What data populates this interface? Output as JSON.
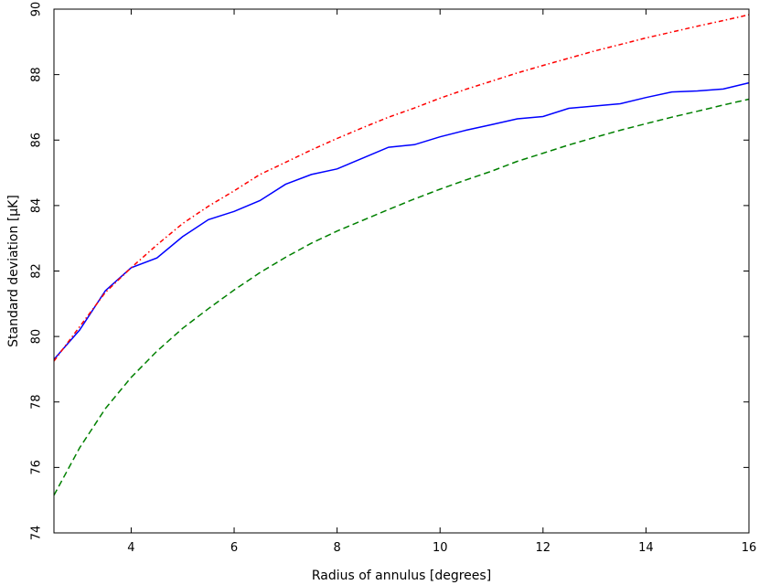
{
  "chart_data": {
    "type": "line",
    "xlabel": "Radius of annulus [degrees]",
    "ylabel": "Standard deviation [μK]",
    "xlim": [
      2.5,
      16
    ],
    "ylim": [
      74,
      90
    ],
    "xticks": [
      4,
      6,
      8,
      10,
      12,
      14,
      16
    ],
    "yticks": [
      74,
      76,
      78,
      80,
      82,
      84,
      86,
      88,
      90
    ],
    "grid": false,
    "legend": "none",
    "series": [
      {
        "color": "#0000ff",
        "style": "solid",
        "x": [
          2.5,
          3.0,
          3.5,
          4.0,
          4.5,
          5.0,
          5.5,
          6.0,
          6.5,
          7.0,
          7.5,
          8.0,
          8.5,
          9.0,
          9.5,
          10.0,
          10.5,
          11.0,
          11.5,
          12.0,
          12.5,
          13.0,
          13.5,
          14.0,
          14.5,
          15.0,
          15.5,
          16.0
        ],
        "y": [
          79.3,
          80.2,
          81.4,
          82.1,
          82.4,
          83.05,
          83.57,
          83.82,
          84.15,
          84.65,
          84.95,
          85.12,
          85.45,
          85.78,
          85.86,
          86.1,
          86.3,
          86.47,
          86.65,
          86.72,
          86.97,
          87.04,
          87.11,
          87.3,
          87.47,
          87.5,
          87.56,
          87.75
        ]
      },
      {
        "color": "#ff0000",
        "style": "dashdot",
        "x": [
          2.5,
          3.0,
          3.5,
          4.0,
          4.5,
          5.0,
          5.5,
          6.0,
          6.5,
          7.0,
          7.5,
          8.0,
          8.5,
          9.0,
          9.5,
          10.0,
          10.5,
          11.0,
          11.5,
          12.0,
          12.5,
          13.0,
          13.5,
          14.0,
          14.5,
          15.0,
          15.5,
          16.0
        ],
        "y": [
          79.25,
          80.3,
          81.35,
          82.1,
          82.8,
          83.45,
          83.98,
          84.45,
          84.95,
          85.32,
          85.7,
          86.05,
          86.38,
          86.7,
          86.98,
          87.28,
          87.55,
          87.8,
          88.05,
          88.28,
          88.5,
          88.72,
          88.92,
          89.12,
          89.3,
          89.48,
          89.65,
          89.83
        ]
      },
      {
        "color": "#008000",
        "style": "dashed",
        "x": [
          2.5,
          3.0,
          3.5,
          4.0,
          4.5,
          5.0,
          5.5,
          6.0,
          6.5,
          7.0,
          7.5,
          8.0,
          8.5,
          9.0,
          9.5,
          10.0,
          10.5,
          11.0,
          11.5,
          12.0,
          12.5,
          13.0,
          13.5,
          14.0,
          14.5,
          15.0,
          15.5,
          16.0
        ],
        "y": [
          75.15,
          76.6,
          77.8,
          78.75,
          79.55,
          80.25,
          80.85,
          81.42,
          81.95,
          82.42,
          82.85,
          83.22,
          83.55,
          83.88,
          84.2,
          84.5,
          84.78,
          85.05,
          85.35,
          85.6,
          85.85,
          86.08,
          86.3,
          86.5,
          86.7,
          86.88,
          87.07,
          87.25
        ]
      }
    ]
  }
}
